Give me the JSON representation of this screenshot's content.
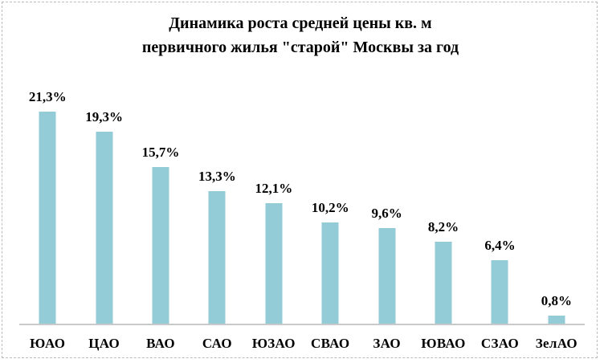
{
  "title": {
    "line1": "Динамика роста средней цены кв. м",
    "line2": "первичного жилья \"старой\" Москвы за год"
  },
  "chart_data": {
    "type": "bar",
    "title": "Динамика роста средней цены кв. м первичного жилья \"старой\" Москвы за год",
    "categories": [
      "ЮАО",
      "ЦАО",
      "ВАО",
      "САО",
      "ЮЗАО",
      "СВАО",
      "ЗАО",
      "ЮВАО",
      "СЗАО",
      "ЗелАО"
    ],
    "values": [
      21.3,
      19.3,
      15.7,
      13.3,
      12.1,
      10.2,
      9.6,
      8.2,
      6.4,
      0.8
    ],
    "value_labels": [
      "21,3%",
      "19,3%",
      "15,7%",
      "13,3%",
      "12,1%",
      "10,2%",
      "9,6%",
      "8,2%",
      "6,4%",
      "0,8%"
    ],
    "xlabel": "",
    "ylabel": "",
    "ylim": [
      0,
      21.3
    ],
    "grid": false,
    "legend": false,
    "bar_color": "#93cbd7",
    "axis_color": "#c9c9c9",
    "frame_color": "#bdbdbd",
    "text_color": "#000000"
  }
}
